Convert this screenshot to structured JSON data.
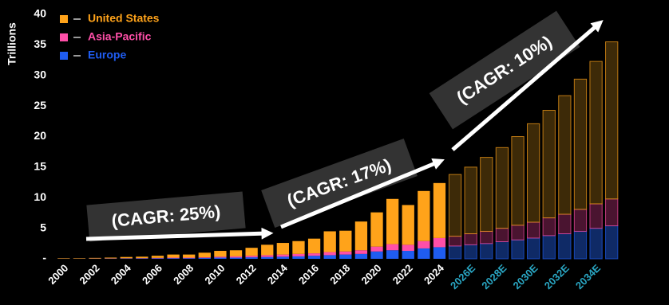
{
  "chart_data": {
    "type": "stacked_bar",
    "y_label": "Trillions",
    "categories": [
      "2000",
      null,
      "2002",
      null,
      "2004",
      null,
      "2006",
      null,
      "2008",
      null,
      "2010",
      null,
      "2012",
      null,
      "2014",
      null,
      "2016",
      null,
      "2018",
      null,
      "2020",
      null,
      "2022",
      null,
      "2024",
      null,
      "2026E",
      null,
      "2028E",
      null,
      "2030E",
      null,
      "2032E",
      null,
      "2034E",
      null
    ],
    "forecast_start_index": 25,
    "category_color": "#ffffff",
    "forecast_category_color": "#2aa7c4",
    "series": [
      {
        "name": "Europe",
        "color": "#1f5cf0",
        "forecast_color": "#0f2a66",
        "values": [
          0.02,
          0.02,
          0.03,
          0.04,
          0.05,
          0.06,
          0.08,
          0.1,
          0.1,
          0.15,
          0.2,
          0.2,
          0.25,
          0.3,
          0.35,
          0.4,
          0.5,
          0.6,
          0.7,
          0.8,
          1.2,
          1.4,
          1.3,
          1.7,
          1.9,
          2.1,
          2.3,
          2.5,
          2.8,
          3.1,
          3.4,
          3.8,
          4.1,
          4.5,
          5.0,
          5.4
        ]
      },
      {
        "name": "Asia-Pacific",
        "color": "#ff4fa8",
        "forecast_color": "#4a1430",
        "values": [
          0.01,
          0.01,
          0.02,
          0.03,
          0.04,
          0.05,
          0.07,
          0.1,
          0.1,
          0.1,
          0.15,
          0.2,
          0.25,
          0.3,
          0.35,
          0.4,
          0.4,
          0.5,
          0.5,
          0.6,
          0.8,
          1.0,
          1.0,
          1.2,
          1.5,
          1.6,
          1.8,
          2.0,
          2.2,
          2.4,
          2.6,
          2.9,
          3.2,
          3.6,
          4.0,
          4.4
        ]
      },
      {
        "name": "United States",
        "color": "#ffa31a",
        "forecast_color": "#3d2a08",
        "values": [
          0.07,
          0.07,
          0.1,
          0.13,
          0.21,
          0.24,
          0.35,
          0.5,
          0.5,
          0.75,
          0.95,
          1.0,
          1.3,
          1.7,
          1.9,
          2.1,
          2.4,
          3.4,
          3.4,
          4.7,
          5.6,
          7.4,
          6.5,
          8.2,
          9.0,
          10.1,
          10.9,
          12.1,
          13.2,
          14.5,
          16.1,
          17.6,
          19.4,
          21.3,
          23.3,
          25.7
        ]
      }
    ],
    "ylim": [
      0,
      40
    ],
    "yticks": [
      {
        "value": 0,
        "label": "-"
      },
      5,
      10,
      15,
      20,
      25,
      30,
      35,
      40
    ],
    "annotations": [
      "(CAGR: 25%)",
      "(CAGR: 17%)",
      "(CAGR: 10%)"
    ]
  }
}
